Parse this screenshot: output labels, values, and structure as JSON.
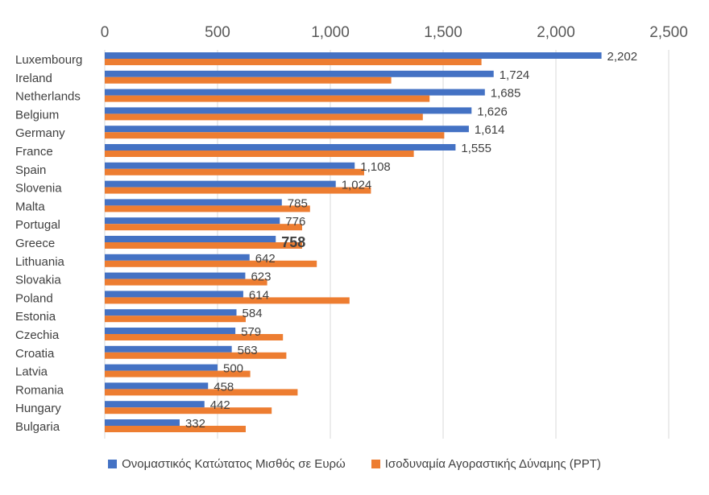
{
  "chart_data": {
    "type": "bar",
    "orientation": "horizontal",
    "categories": [
      "Luxembourg",
      "Ireland",
      "Netherlands",
      "Belgium",
      "Germany",
      "France",
      "Spain",
      "Slovenia",
      "Malta",
      "Portugal",
      "Greece",
      "Lithuania",
      "Slovakia",
      "Poland",
      "Estonia",
      "Czechia",
      "Croatia",
      "Latvia",
      "Romania",
      "Hungary",
      "Bulgaria"
    ],
    "series": [
      {
        "name": "Ονομαστικός Κατώτατος Μισθός σε Ευρώ",
        "color": "#4472C4",
        "values": [
          2202,
          1724,
          1685,
          1626,
          1614,
          1555,
          1108,
          1024,
          785,
          776,
          758,
          642,
          623,
          614,
          584,
          579,
          563,
          500,
          458,
          442,
          332
        ],
        "labels": [
          "2,202",
          "1,724",
          "1,685",
          "1,626",
          "1,614",
          "1,555",
          "1,108",
          "1,024",
          "785",
          "776",
          "758",
          "642",
          "623",
          "614",
          "584",
          "579",
          "563",
          "500",
          "458",
          "442",
          "332"
        ]
      },
      {
        "name": "Ισοδυναμία Αγοραστικής Δύναμης (PPT)",
        "color": "#ED7D31",
        "values": [
          1670,
          1270,
          1440,
          1410,
          1505,
          1370,
          1150,
          1180,
          910,
          875,
          875,
          940,
          720,
          1085,
          625,
          790,
          805,
          645,
          855,
          740,
          625
        ]
      }
    ],
    "highlight_category": "Greece",
    "xlim": [
      0,
      2500
    ],
    "xticks": [
      "0",
      "500",
      "1,000",
      "1,500",
      "2,000",
      "2,500"
    ],
    "xaxis_position": "top",
    "gridlines": true,
    "legend_position": "bottom"
  }
}
